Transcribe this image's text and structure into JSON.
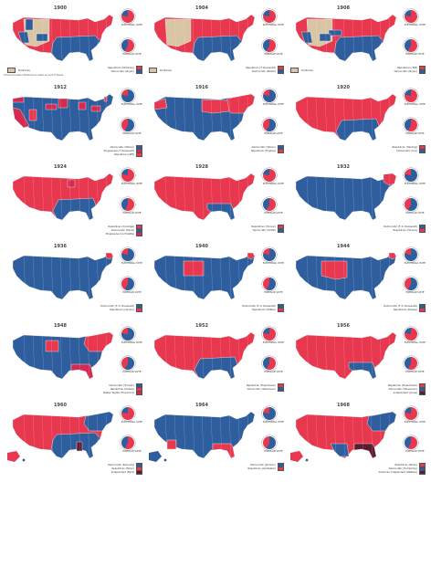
{
  "colors": {
    "republican": "#e8384f",
    "democratic": "#2f5e9e",
    "independent": "#5a1d30",
    "territory": "#d9c4a4",
    "progressive": "#d22a50"
  },
  "labels": {
    "electoral": "ELECTORAL VOTE",
    "popular": "POPULAR VOTE"
  },
  "note": "Three Counties (Oklahoma) voted as part of Texas",
  "panels": [
    {
      "year": "1900",
      "base": "red",
      "blue": [
        "south",
        "nevada",
        "idaho",
        "colorado"
      ],
      "tan": true,
      "legend": [
        [
          "Republican (McKinley)",
          "#e8384f"
        ],
        [
          "Democratic (Bryan)",
          "#2f5e9e"
        ]
      ],
      "territory": "Territories",
      "note": true
    },
    {
      "year": "1904",
      "base": "red",
      "blue": [
        "south"
      ],
      "tan": true,
      "legend": [
        [
          "Republican (T. Roosevelt)",
          "#e8384f"
        ],
        [
          "Democratic (Parker)",
          "#2f5e9e"
        ]
      ],
      "territory": "Territories"
    },
    {
      "year": "1908",
      "base": "red",
      "blue": [
        "south",
        "nebraska",
        "colorado",
        "nevada"
      ],
      "tan": true,
      "legend": [
        [
          "Republican (Taft)",
          "#e8384f"
        ],
        [
          "Democratic (Bryan)",
          "#2f5e9e"
        ]
      ],
      "territory": "Territories"
    },
    {
      "year": "1912",
      "base": "blue",
      "red": [
        "utah",
        "vermont"
      ],
      "prog": [
        "california",
        "michigan",
        "minnesota",
        "southdakota",
        "pennsylvania",
        "washington"
      ],
      "legend": [
        [
          "Democratic (Wilson)",
          "#2f5e9e"
        ],
        [
          "Progressive (T. Roosevelt)",
          "#d22a50"
        ],
        [
          "Republican (Taft)",
          "#e8384f"
        ]
      ]
    },
    {
      "year": "1916",
      "base": "blue",
      "red": [
        "northeast",
        "midwest",
        "oregon"
      ],
      "legend": [
        [
          "Democratic (Wilson)",
          "#2f5e9e"
        ],
        [
          "Republican (Hughes)",
          "#e8384f"
        ]
      ]
    },
    {
      "year": "1920",
      "base": "red",
      "blue": [
        "deepsouth"
      ],
      "legend": [
        [
          "Republican (Harding)",
          "#e8384f"
        ],
        [
          "Democratic (Cox)",
          "#2f5e9e"
        ]
      ]
    },
    {
      "year": "1924",
      "base": "red",
      "blue": [
        "deepsouth"
      ],
      "prog": [
        "wisconsin"
      ],
      "legend": [
        [
          "Republican (Coolidge)",
          "#e8384f"
        ],
        [
          "Democratic (Davis)",
          "#2f5e9e"
        ],
        [
          "Progressive (La Follette)",
          "#d22a50"
        ]
      ]
    },
    {
      "year": "1928",
      "base": "red",
      "blue": [
        "deepsouth2"
      ],
      "legend": [
        [
          "Republican (Hoover)",
          "#e8384f"
        ],
        [
          "Democratic (Smith)",
          "#2f5e9e"
        ]
      ]
    },
    {
      "year": "1932",
      "base": "blue",
      "red": [
        "newengland"
      ],
      "legend": [
        [
          "Democratic (F. D. Roosevelt)",
          "#2f5e9e"
        ],
        [
          "Republican (Hoover)",
          "#e8384f"
        ]
      ]
    },
    {
      "year": "1936",
      "base": "blue",
      "red": [
        "maine"
      ],
      "legend": [
        [
          "Democratic (F. D. Roosevelt)",
          "#2f5e9e"
        ],
        [
          "Republican (Landon)",
          "#e8384f"
        ]
      ]
    },
    {
      "year": "1940",
      "base": "blue",
      "red": [
        "plains",
        "maine"
      ],
      "legend": [
        [
          "Democratic (F. D. Roosevelt)",
          "#2f5e9e"
        ],
        [
          "Republican (Willkie)",
          "#e8384f"
        ]
      ]
    },
    {
      "year": "1944",
      "base": "blue",
      "red": [
        "plains2",
        "maine"
      ],
      "legend": [
        [
          "Democratic (F. D. Roosevelt)",
          "#2f5e9e"
        ],
        [
          "Republican (Dewey)",
          "#e8384f"
        ]
      ]
    },
    {
      "year": "1948",
      "base": "blue",
      "red": [
        "northeast",
        "plains3"
      ],
      "prog": [
        "deepsouth3"
      ],
      "legend": [
        [
          "Democratic (Truman)",
          "#2f5e9e"
        ],
        [
          "Republican (Dewey)",
          "#e8384f"
        ],
        [
          "States' Rights (Thurmond)",
          "#d22a50"
        ]
      ]
    },
    {
      "year": "1952",
      "base": "red",
      "blue": [
        "deepsouth"
      ],
      "legend": [
        [
          "Republican (Eisenhower)",
          "#e8384f"
        ],
        [
          "Democratic (Stevenson)",
          "#2f5e9e"
        ]
      ]
    },
    {
      "year": "1956",
      "base": "red",
      "blue": [
        "deepsouth2"
      ],
      "legend": [
        [
          "Republican (Eisenhower)",
          "#e8384f"
        ],
        [
          "Democratic (Stevenson)",
          "#2f5e9e"
        ],
        [
          "Independent (Jones)",
          "#5a1d30"
        ]
      ]
    },
    {
      "year": "1960",
      "base": "red",
      "blue": [
        "south",
        "northeast"
      ],
      "indep": [
        "mississippi"
      ],
      "legend": [
        [
          "Democratic (Kennedy)",
          "#2f5e9e"
        ],
        [
          "Republican (Nixon)",
          "#e8384f"
        ],
        [
          "Independent (Byrd)",
          "#5a1d30"
        ]
      ],
      "ak": true
    },
    {
      "year": "1964",
      "base": "blue",
      "red": [
        "deepsouth3",
        "arizona"
      ],
      "legend": [
        [
          "Democratic (Johnson)",
          "#2f5e9e"
        ],
        [
          "Republican (Goldwater)",
          "#e8384f"
        ]
      ],
      "ak": true
    },
    {
      "year": "1968",
      "base": "red",
      "blue": [
        "northeast",
        "texas"
      ],
      "indep": [
        "deepsouth3"
      ],
      "legend": [
        [
          "Republican (Nixon)",
          "#e8384f"
        ],
        [
          "Democratic (Humphrey)",
          "#2f5e9e"
        ],
        [
          "American Independent (Wallace)",
          "#5a1d30"
        ]
      ],
      "ak": true
    }
  ]
}
